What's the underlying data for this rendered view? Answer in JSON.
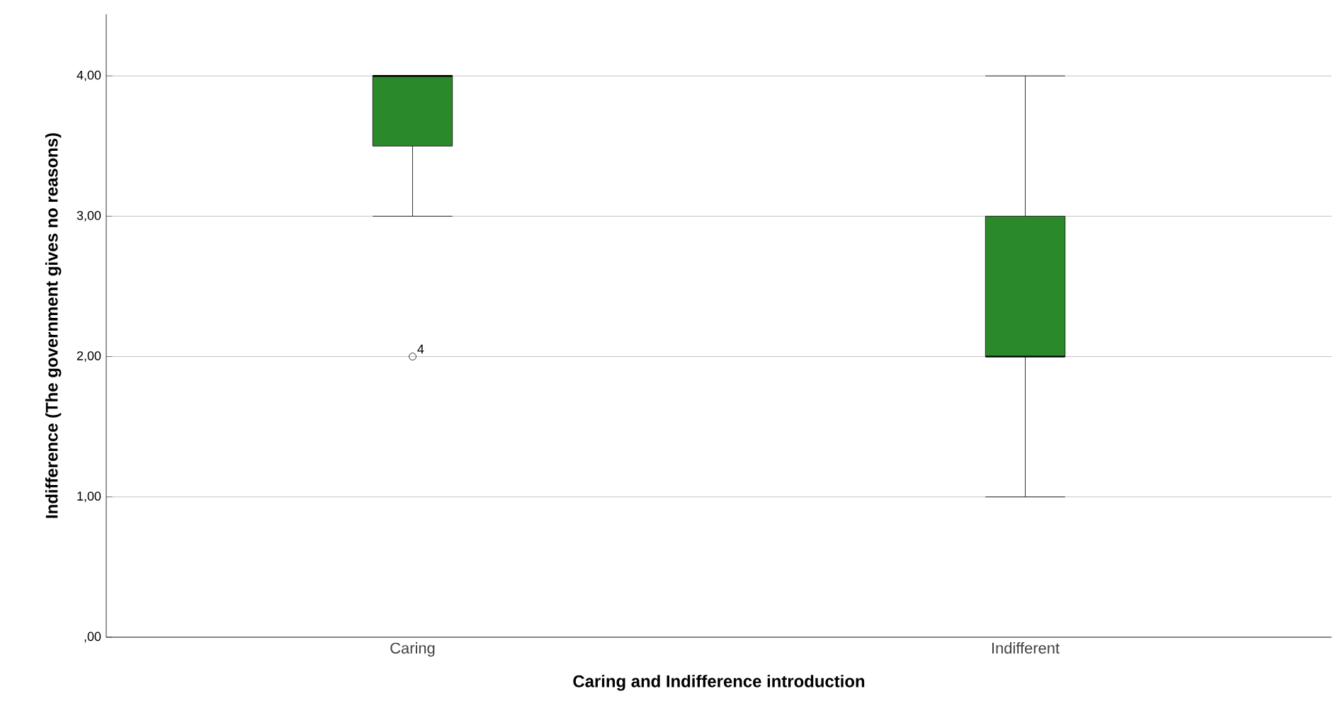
{
  "chart_data": {
    "type": "box",
    "xlabel": "Caring and Indifference introduction",
    "ylabel": "Indifference (The government gives no reasons)",
    "categories": [
      "Caring",
      "Indifferent"
    ],
    "boxes": [
      {
        "low": 3,
        "q1": 3.5,
        "median": 4,
        "q3": 4,
        "high": 4,
        "outliers": [
          2
        ]
      },
      {
        "low": 1,
        "q1": 2,
        "median": 2,
        "q3": 3,
        "high": 4
      }
    ],
    "color": "#2a8a2a",
    "ylim": [
      0,
      4.44
    ],
    "yticks": [
      {
        "value": 0,
        "label": ",00"
      },
      {
        "value": 1,
        "label": "1,00"
      },
      {
        "value": 2,
        "label": "2,00"
      },
      {
        "value": 3,
        "label": "3,00"
      },
      {
        "value": 4,
        "label": "4,00"
      }
    ],
    "grid": "y",
    "annotations": [
      "4"
    ]
  }
}
